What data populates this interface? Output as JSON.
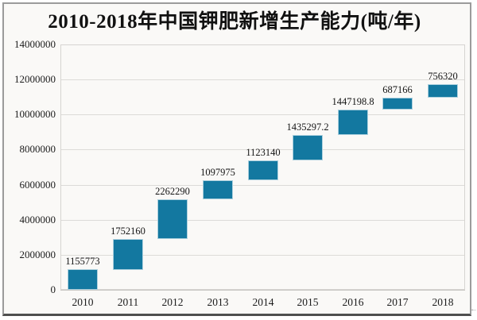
{
  "chart_data": {
    "type": "bar",
    "subtype": "waterfall (each bar floats, starting at the cumulative sum of all previous years' values)",
    "title": "2010-2018年中国钾肥新增生产能力(吨/年)",
    "categories": [
      "2010",
      "2011",
      "2012",
      "2013",
      "2014",
      "2015",
      "2016",
      "2017",
      "2018"
    ],
    "values": [
      1155773,
      1752160,
      2262290,
      1097975,
      1123140,
      1435297.2,
      1447198.8,
      687166,
      756320
    ],
    "value_labels": [
      "1155773",
      "1752160",
      "2262290",
      "1097975",
      "1123140",
      "1435297.2",
      "1447198.8",
      "687166",
      "756320"
    ],
    "cumulative_tops": [
      1155773,
      2907933,
      5170223,
      6268198,
      7391338,
      8826635.2,
      10273834,
      10961000,
      11717320
    ],
    "xlabel": "",
    "ylabel": "",
    "ylim": [
      0,
      14000000
    ],
    "yticks": [
      0,
      2000000,
      4000000,
      6000000,
      8000000,
      10000000,
      12000000,
      14000000
    ],
    "ytick_labels": [
      "0",
      "2000000",
      "4000000",
      "6000000",
      "8000000",
      "10000000",
      "12000000",
      "14000000"
    ],
    "grid": true,
    "legend": "none",
    "bar_color": "#1378a0"
  },
  "decorations": {
    "corner_mark": "←"
  }
}
